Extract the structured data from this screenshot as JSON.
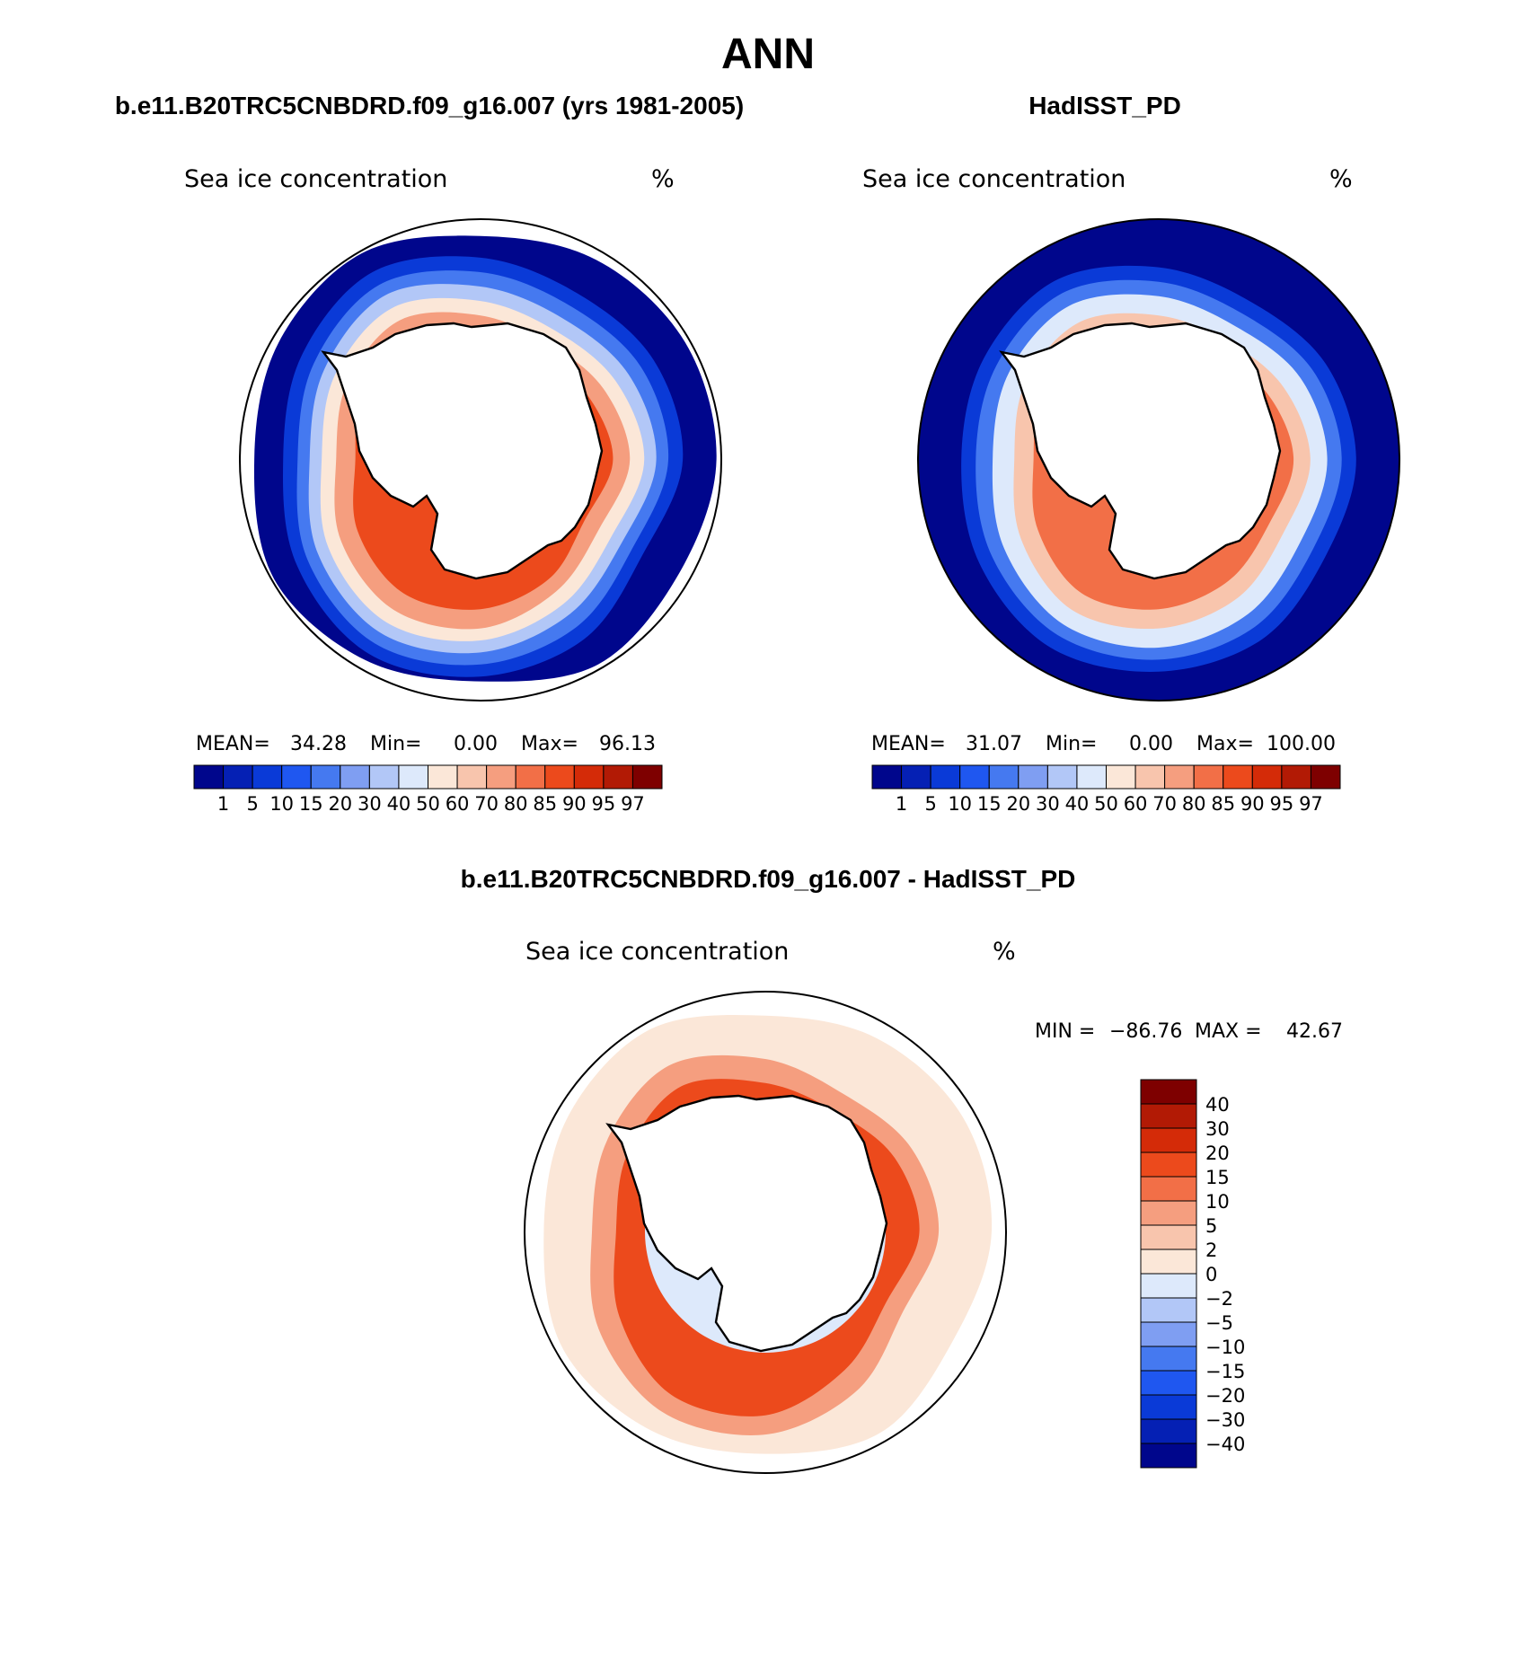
{
  "page": {
    "season": "ANN",
    "case_title": "b.e11.B20TRC5CNBDRD.f09_g16.007 (yrs 1981-2005)",
    "obs_title": "HadISST_PD",
    "diff_title": "b.e11.B20TRC5CNBDRD.f09_g16.007 - HadISST_PD"
  },
  "panels": {
    "case": {
      "variable": "Sea ice concentration",
      "units": "%",
      "stats": {
        "mean_label": "MEAN=",
        "mean": "34.28",
        "min_label": "Min=",
        "min": "0.00",
        "max_label": "Max=",
        "max": "96.13"
      }
    },
    "obs": {
      "variable": "Sea ice concentration",
      "units": "%",
      "stats": {
        "mean_label": "MEAN=",
        "mean": "31.07",
        "min_label": "Min=",
        "min": "0.00",
        "max_label": "Max=",
        "max": "100.00"
      }
    },
    "diff": {
      "variable": "Sea ice concentration",
      "units": "%",
      "stats": {
        "min_label": "MIN =",
        "min": "−86.76",
        "max_label": "MAX =",
        "max": "42.67"
      }
    }
  },
  "colorbars": {
    "conc": {
      "labels": [
        "1",
        "5",
        "10",
        "15",
        "20",
        "30",
        "40",
        "50",
        "60",
        "70",
        "80",
        "85",
        "90",
        "95",
        "97"
      ],
      "colors": [
        "#00068c",
        "#0520b4",
        "#0a3ad7",
        "#1f57f0",
        "#4579f0",
        "#7f9ef2",
        "#b2c7f7",
        "#dde9fb",
        "#fbe7d8",
        "#f8c5ad",
        "#f59e7f",
        "#f26f47",
        "#ec4a1c",
        "#d42b08",
        "#b21a05",
        "#7e0000"
      ]
    },
    "diff": {
      "labels": [
        "40",
        "30",
        "20",
        "15",
        "10",
        "5",
        "2",
        "0",
        "−2",
        "−5",
        "−10",
        "−15",
        "−20",
        "−30",
        "−40"
      ],
      "colors": [
        "#7e0000",
        "#b21a05",
        "#d42b08",
        "#ec4a1c",
        "#f26f47",
        "#f59e7f",
        "#f8c5ad",
        "#fbe7d8",
        "#dde9fb",
        "#b2c7f7",
        "#7f9ef2",
        "#4579f0",
        "#1f57f0",
        "#0a3ad7",
        "#0520b4",
        "#00068c"
      ]
    }
  },
  "map_fields": {
    "case": [
      {
        "level_color": "#00068c",
        "r": [
          0.98,
          0.95,
          0.98,
          0.92,
          0.96,
          0.99,
          0.94,
          0.97,
          0.99,
          0.93,
          0.96,
          0.98
        ]
      },
      {
        "level_color": "#0a3ad7",
        "r": [
          0.84,
          0.78,
          0.86,
          0.9,
          0.93,
          0.88,
          0.82,
          0.86,
          0.9,
          0.84,
          0.8,
          0.83
        ]
      },
      {
        "level_color": "#4579f0",
        "r": [
          0.78,
          0.73,
          0.8,
          0.85,
          0.88,
          0.83,
          0.76,
          0.8,
          0.84,
          0.78,
          0.74,
          0.77
        ]
      },
      {
        "level_color": "#b2c7f7",
        "r": [
          0.73,
          0.68,
          0.74,
          0.8,
          0.83,
          0.78,
          0.71,
          0.75,
          0.79,
          0.72,
          0.68,
          0.71
        ]
      },
      {
        "level_color": "#fbe7d8",
        "r": [
          0.68,
          0.63,
          0.69,
          0.75,
          0.78,
          0.73,
          0.66,
          0.7,
          0.73,
          0.66,
          0.62,
          0.65
        ]
      },
      {
        "level_color": "#f59e7f",
        "r": [
          0.62,
          0.57,
          0.63,
          0.7,
          0.72,
          0.67,
          0.6,
          0.64,
          0.67,
          0.6,
          0.56,
          0.59
        ]
      },
      {
        "level_color": "#ec4a1c",
        "r": [
          0.55,
          0.5,
          0.57,
          0.62,
          0.64,
          0.59,
          0.52,
          0.57,
          0.6,
          0.53,
          0.5,
          0.52
        ]
      }
    ],
    "obs": [
      {
        "level_color": "#00068c",
        "r": [
          1,
          1,
          1,
          1,
          1,
          1,
          1,
          1,
          1,
          1,
          1,
          1
        ]
      },
      {
        "level_color": "#0a3ad7",
        "r": [
          0.82,
          0.8,
          0.86,
          0.88,
          0.9,
          0.86,
          0.82,
          0.84,
          0.86,
          0.8,
          0.76,
          0.8
        ]
      },
      {
        "level_color": "#4579f0",
        "r": [
          0.76,
          0.74,
          0.8,
          0.83,
          0.84,
          0.8,
          0.76,
          0.78,
          0.8,
          0.74,
          0.7,
          0.74
        ]
      },
      {
        "level_color": "#dde9fb",
        "r": [
          0.7,
          0.68,
          0.74,
          0.78,
          0.79,
          0.74,
          0.69,
          0.72,
          0.74,
          0.68,
          0.64,
          0.68
        ]
      },
      {
        "level_color": "#f8c5ad",
        "r": [
          0.63,
          0.6,
          0.66,
          0.7,
          0.72,
          0.66,
          0.6,
          0.64,
          0.66,
          0.6,
          0.57,
          0.6
        ]
      },
      {
        "level_color": "#f26f47",
        "r": [
          0.56,
          0.53,
          0.58,
          0.62,
          0.64,
          0.58,
          0.52,
          0.56,
          0.58,
          0.52,
          0.5,
          0.53
        ]
      }
    ],
    "diff": [
      {
        "level_color": "#fbe7d8",
        "r": [
          0.94,
          0.9,
          0.96,
          0.92,
          0.95,
          0.97,
          0.92,
          0.95,
          0.97,
          0.9,
          0.93,
          0.95
        ]
      },
      {
        "level_color": "#f59e7f",
        "r": [
          0.72,
          0.66,
          0.76,
          0.84,
          0.86,
          0.8,
          0.72,
          0.76,
          0.8,
          0.72,
          0.66,
          0.7
        ]
      },
      {
        "level_color": "#ec4a1c",
        "r": [
          0.64,
          0.58,
          0.66,
          0.76,
          0.78,
          0.7,
          0.62,
          0.66,
          0.7,
          0.62,
          0.58,
          0.62
        ]
      },
      {
        "level_color": "#dde9fb",
        "r": [
          0.5,
          0.5,
          0.5,
          0.5,
          0.5,
          0.5,
          0.5,
          0.5,
          0.5,
          0.5,
          0.5,
          0.5
        ]
      }
    ]
  }
}
